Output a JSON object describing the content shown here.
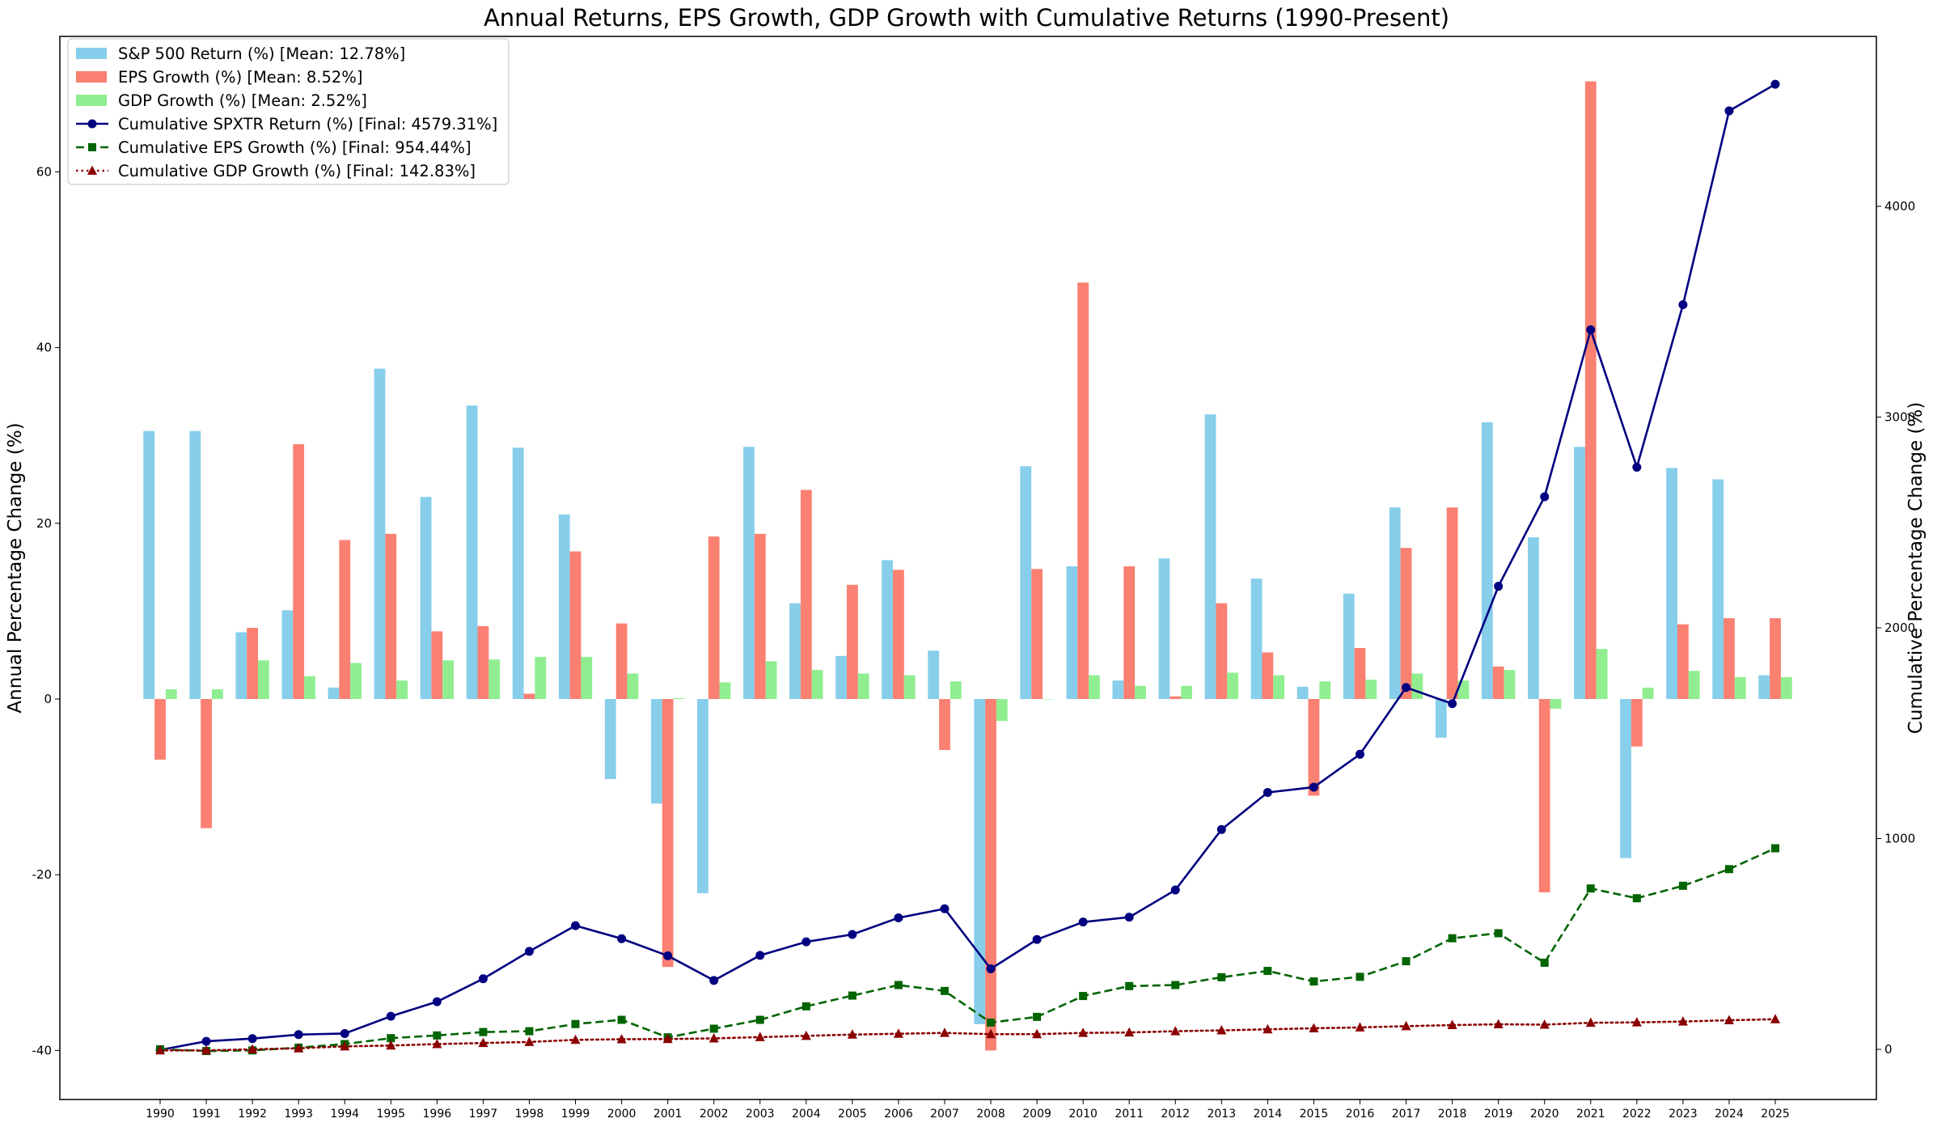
{
  "chart_data": {
    "type": "bar",
    "title": "Annual Returns, EPS Growth, GDP Growth with Cumulative Returns (1990-Present)",
    "ylabel": "Annual Percentage Change (%)",
    "y2label": "Cumulative Percentage Change (%)",
    "ylim": [
      -45.5,
      75
    ],
    "y2lim": [
      -200,
      4860
    ],
    "yticks": [
      "-40",
      "-20",
      "0",
      "20",
      "40",
      "60"
    ],
    "y2ticks": [
      "0",
      "1000",
      "2000",
      "3000",
      "4000"
    ],
    "legend_position": "upper-left",
    "grid": false,
    "categories": [
      "1990",
      "1991",
      "1992",
      "1993",
      "1994",
      "1995",
      "1996",
      "1997",
      "1998",
      "1999",
      "2000",
      "2001",
      "2002",
      "2003",
      "2004",
      "2005",
      "2006",
      "2007",
      "2008",
      "2009",
      "2010",
      "2011",
      "2012",
      "2013",
      "2014",
      "2015",
      "2016",
      "2017",
      "2018",
      "2019",
      "2020",
      "2021",
      "2022",
      "2023",
      "2024",
      "2025"
    ],
    "bar_series": [
      {
        "name": "S&P 500 Return (%) [Mean: 12.78%]",
        "color": "#87CEEB",
        "values": [
          30.5,
          30.5,
          7.6,
          10.1,
          1.3,
          37.6,
          23.0,
          33.4,
          28.6,
          21.0,
          -9.1,
          -11.9,
          -22.1,
          28.7,
          10.9,
          4.9,
          15.8,
          5.5,
          -37.0,
          26.5,
          15.1,
          2.1,
          16.0,
          32.4,
          13.7,
          1.4,
          12.0,
          21.8,
          -4.4,
          31.5,
          18.4,
          28.7,
          -18.1,
          26.3,
          25.0,
          2.7
        ]
      },
      {
        "name": "EPS Growth (%) [Mean: 8.52%]",
        "color": "#FA8072",
        "values": [
          -6.9,
          -14.7,
          8.1,
          29.0,
          18.1,
          18.8,
          7.7,
          8.3,
          0.6,
          16.8,
          8.6,
          -30.5,
          18.5,
          18.8,
          23.8,
          13.0,
          14.7,
          -5.8,
          -40.0,
          14.8,
          47.4,
          15.1,
          0.3,
          10.9,
          5.3,
          -11.0,
          5.8,
          17.2,
          21.8,
          3.7,
          -22.0,
          70.3,
          -5.4,
          8.5,
          9.2,
          9.2
        ]
      },
      {
        "name": "GDP Growth (%) [Mean: 2.52%]",
        "color": "#90EE90",
        "values": [
          1.1,
          1.1,
          4.4,
          2.6,
          4.1,
          2.1,
          4.4,
          4.5,
          4.8,
          4.8,
          2.9,
          0.1,
          1.9,
          4.3,
          3.3,
          2.9,
          2.7,
          2.0,
          -2.5,
          0.0,
          2.7,
          1.5,
          1.5,
          3.0,
          2.7,
          2.0,
          2.2,
          2.9,
          2.1,
          3.3,
          -1.1,
          5.7,
          1.3,
          3.2,
          2.5,
          2.5
        ]
      }
    ],
    "line_series": [
      {
        "name": "Cumulative SPXTR Return (%) [Final: 4579.31%]",
        "color": "#000080",
        "marker": "circle",
        "dash": "solid",
        "values": [
          -3,
          38,
          51,
          70,
          75,
          157,
          226,
          335,
          465,
          587,
          525,
          444,
          327,
          446,
          510,
          545,
          624,
          667,
          382,
          521,
          604,
          627,
          756,
          1043,
          1219,
          1244,
          1400,
          1717,
          1640,
          2197,
          2622,
          3414,
          2762,
          3533,
          4453,
          4579
        ]
      },
      {
        "name": "Cumulative EPS Growth (%) [Final: 954.44%]",
        "color": "#006400",
        "marker": "square",
        "dash": "dashed",
        "values": [
          0,
          -8,
          -5,
          8,
          25,
          53,
          66,
          82,
          86,
          120,
          140,
          57,
          98,
          140,
          204,
          255,
          305,
          277,
          127,
          154,
          253,
          300,
          305,
          342,
          372,
          322,
          344,
          418,
          527,
          551,
          411,
          763,
          717,
          776,
          855,
          954
        ]
      },
      {
        "name": "Cumulative GDP Growth (%) [Final: 142.83%]",
        "color": "#8B0000",
        "marker": "triangle",
        "dash": "dotted",
        "values": [
          -5,
          -5,
          0,
          5,
          14,
          18,
          25,
          30,
          35,
          45,
          48,
          49,
          52,
          58,
          64,
          70,
          74,
          78,
          72,
          72,
          78,
          80,
          86,
          90,
          95,
          100,
          104,
          110,
          115,
          119,
          117,
          126,
          128,
          132,
          138,
          143
        ]
      }
    ]
  }
}
